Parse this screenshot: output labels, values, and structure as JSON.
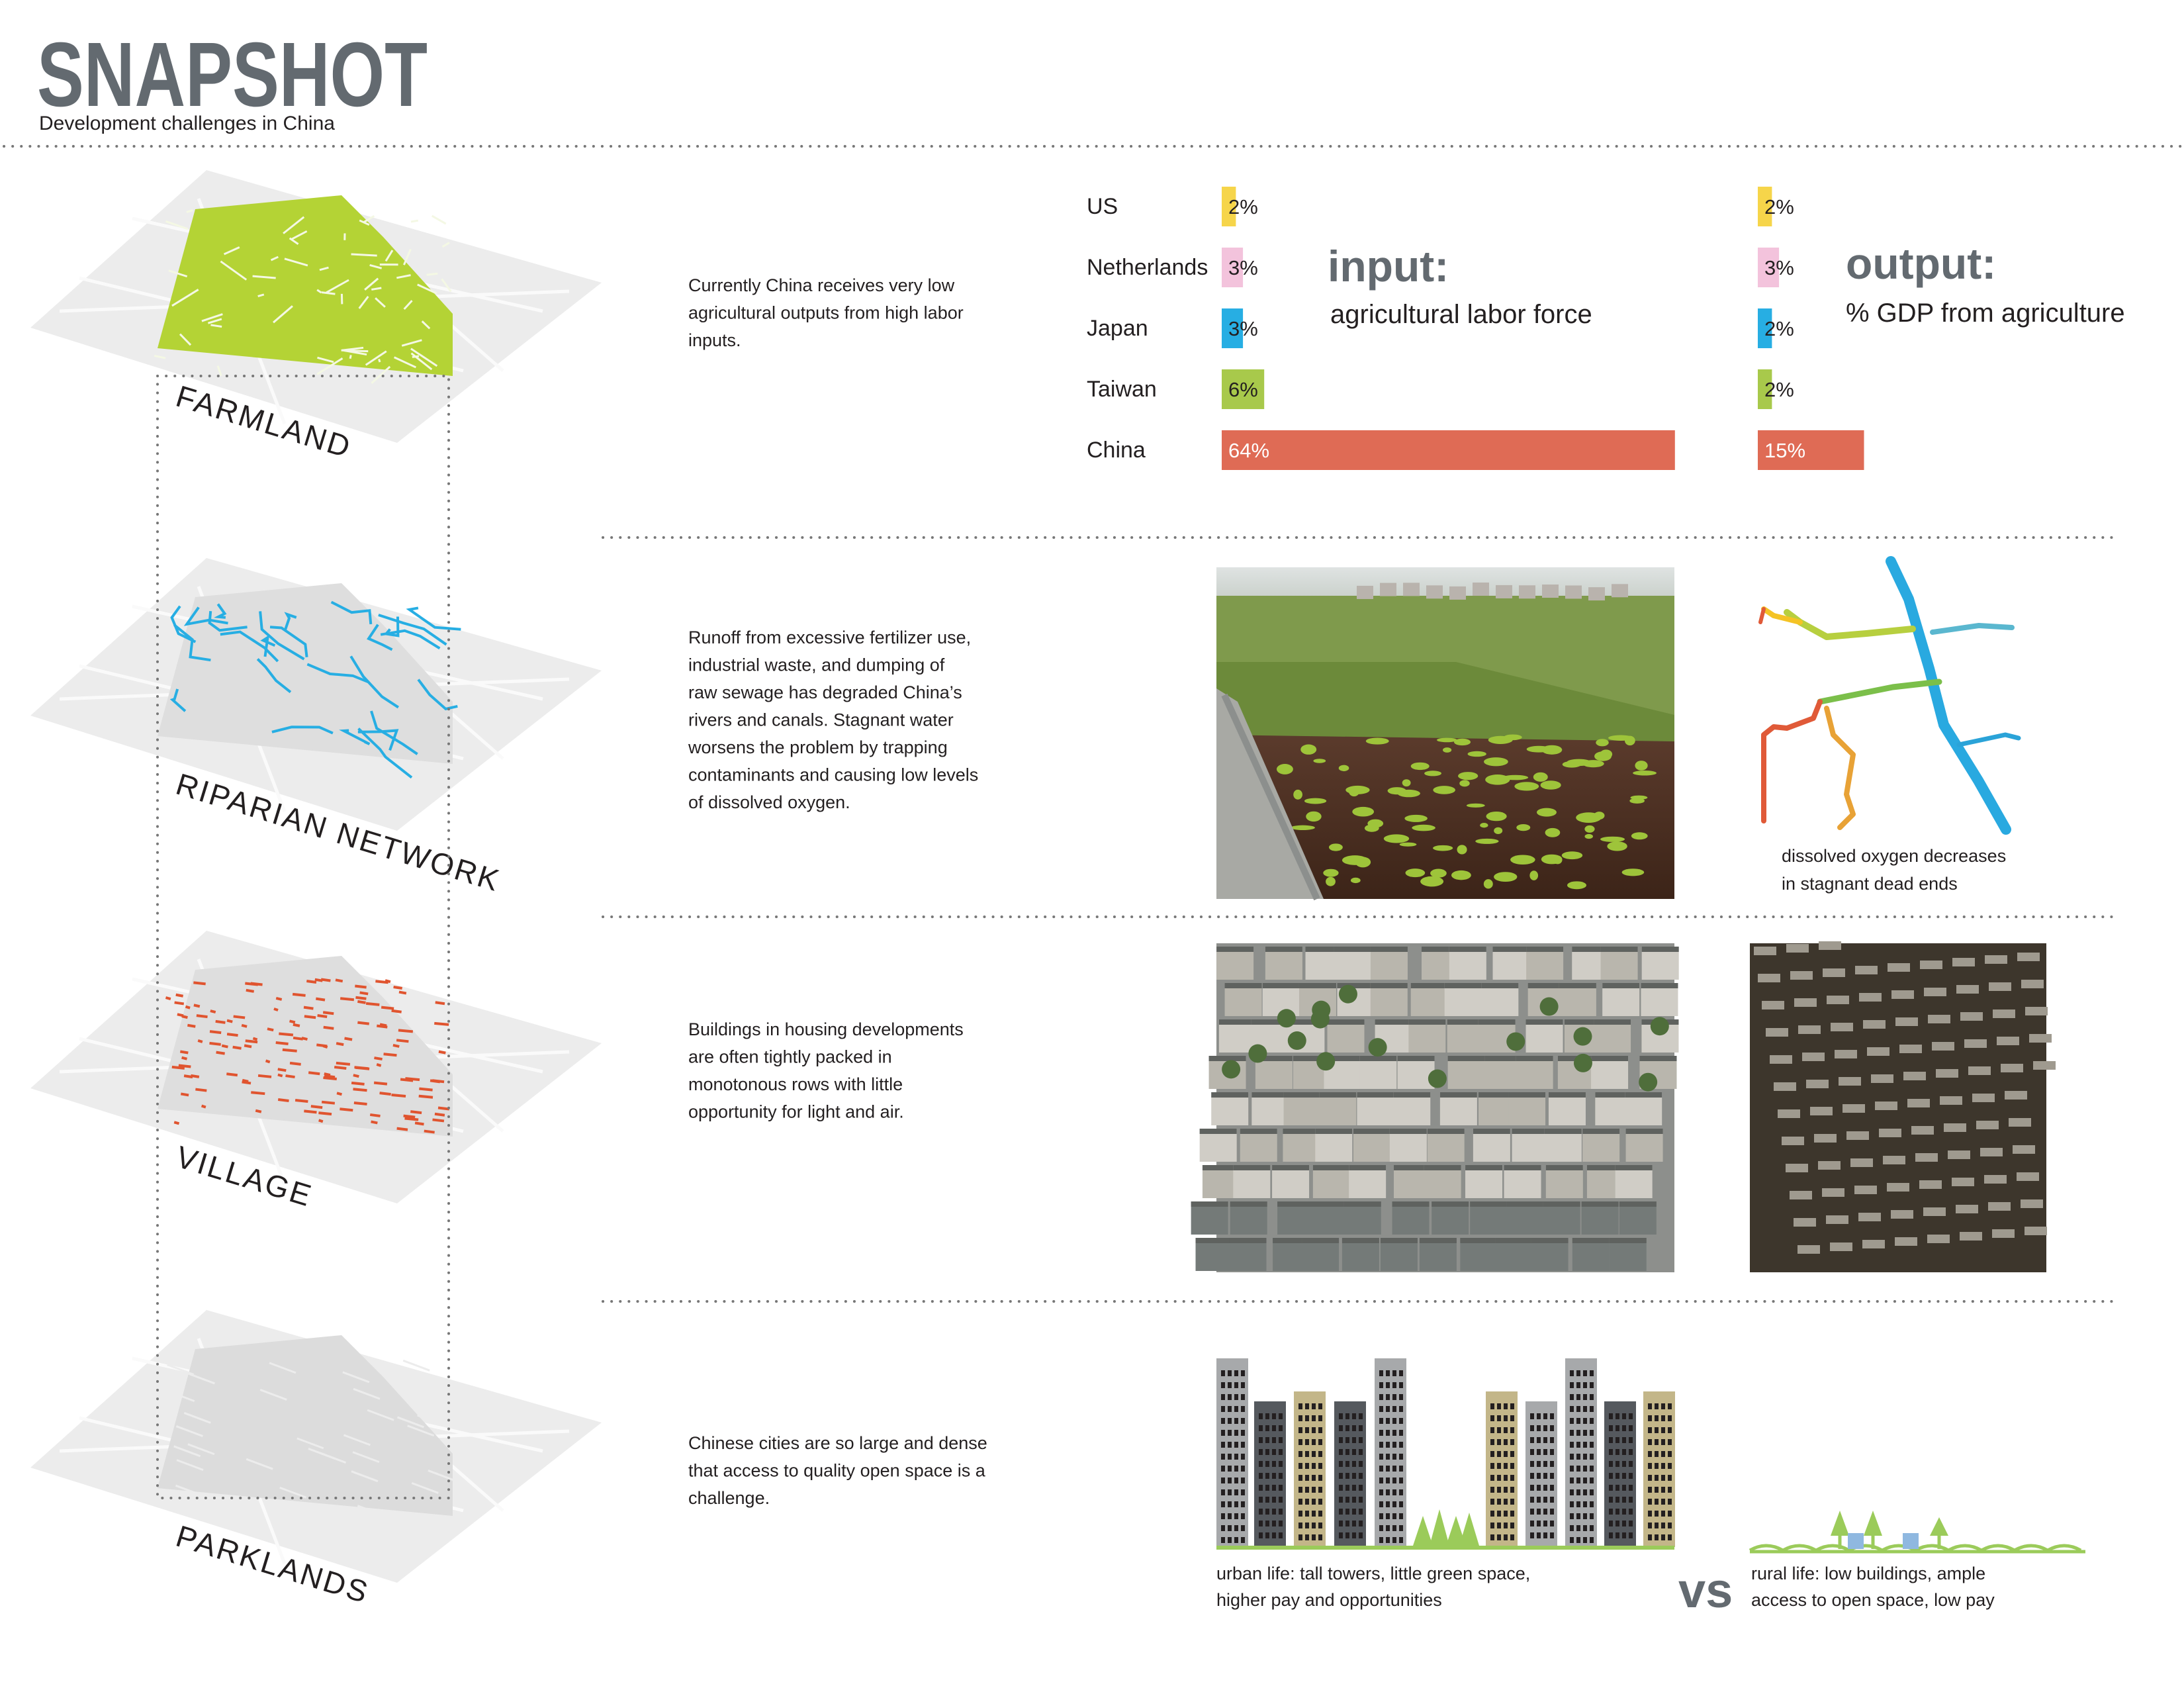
{
  "header": {
    "title": "SNAPSHOT",
    "subtitle": "Development challenges in China"
  },
  "layers": [
    "FARMLAND",
    "RIPARIAN NETWORK",
    "VILLAGE",
    "PARKLANDS"
  ],
  "sections": [
    {
      "text": [
        "Currently China receives very low",
        "agricultural outputs from high labor",
        "inputs."
      ]
    },
    {
      "text": [
        "Runoff from excessive fertilizer use,",
        "industrial waste, and dumping of",
        "raw sewage has degraded China’s",
        "rivers and canals. Stagnant water",
        "worsens the problem by trapping",
        "contaminants and causing low levels",
        "of dissolved oxygen."
      ]
    },
    {
      "text": [
        "Buildings in housing developments",
        "are often tightly packed in",
        "monotonous rows with little",
        "opportunity for light and air."
      ]
    },
    {
      "text": [
        "Chinese cities are so large and dense",
        "that access to quality open space is a",
        "challenge."
      ]
    }
  ],
  "chart_data": [
    {
      "type": "bar",
      "title": "input:",
      "subtitle": "agricultural labor force",
      "categories": [
        "US",
        "Netherlands",
        "Japan",
        "Taiwan",
        "China"
      ],
      "values": [
        2,
        3,
        3,
        6,
        64
      ],
      "value_labels": [
        "2%",
        "3%",
        "3%",
        "6%",
        "64%"
      ],
      "colors": [
        "#f6d54a",
        "#f3c3dc",
        "#27aee3",
        "#a8c94b",
        "#df6b55"
      ]
    },
    {
      "type": "bar",
      "title": "output:",
      "subtitle": "% GDP from agriculture",
      "values": [
        2,
        3,
        2,
        2,
        15
      ],
      "value_labels": [
        "2%",
        "3%",
        "2%",
        "2%",
        "15%"
      ],
      "colors": [
        "#f6d54a",
        "#f3c3dc",
        "#27aee3",
        "#a8c94b",
        "#df6b55"
      ]
    }
  ],
  "captions": {
    "oxygen": [
      "dissolved oxygen decreases",
      "in stagnant dead ends"
    ],
    "urban": [
      "urban life: tall towers, little green space,",
      "higher pay and opportunities"
    ],
    "vs": "vs",
    "rural": [
      "rural life: low buildings, ample",
      "access to open space, low pay"
    ]
  }
}
